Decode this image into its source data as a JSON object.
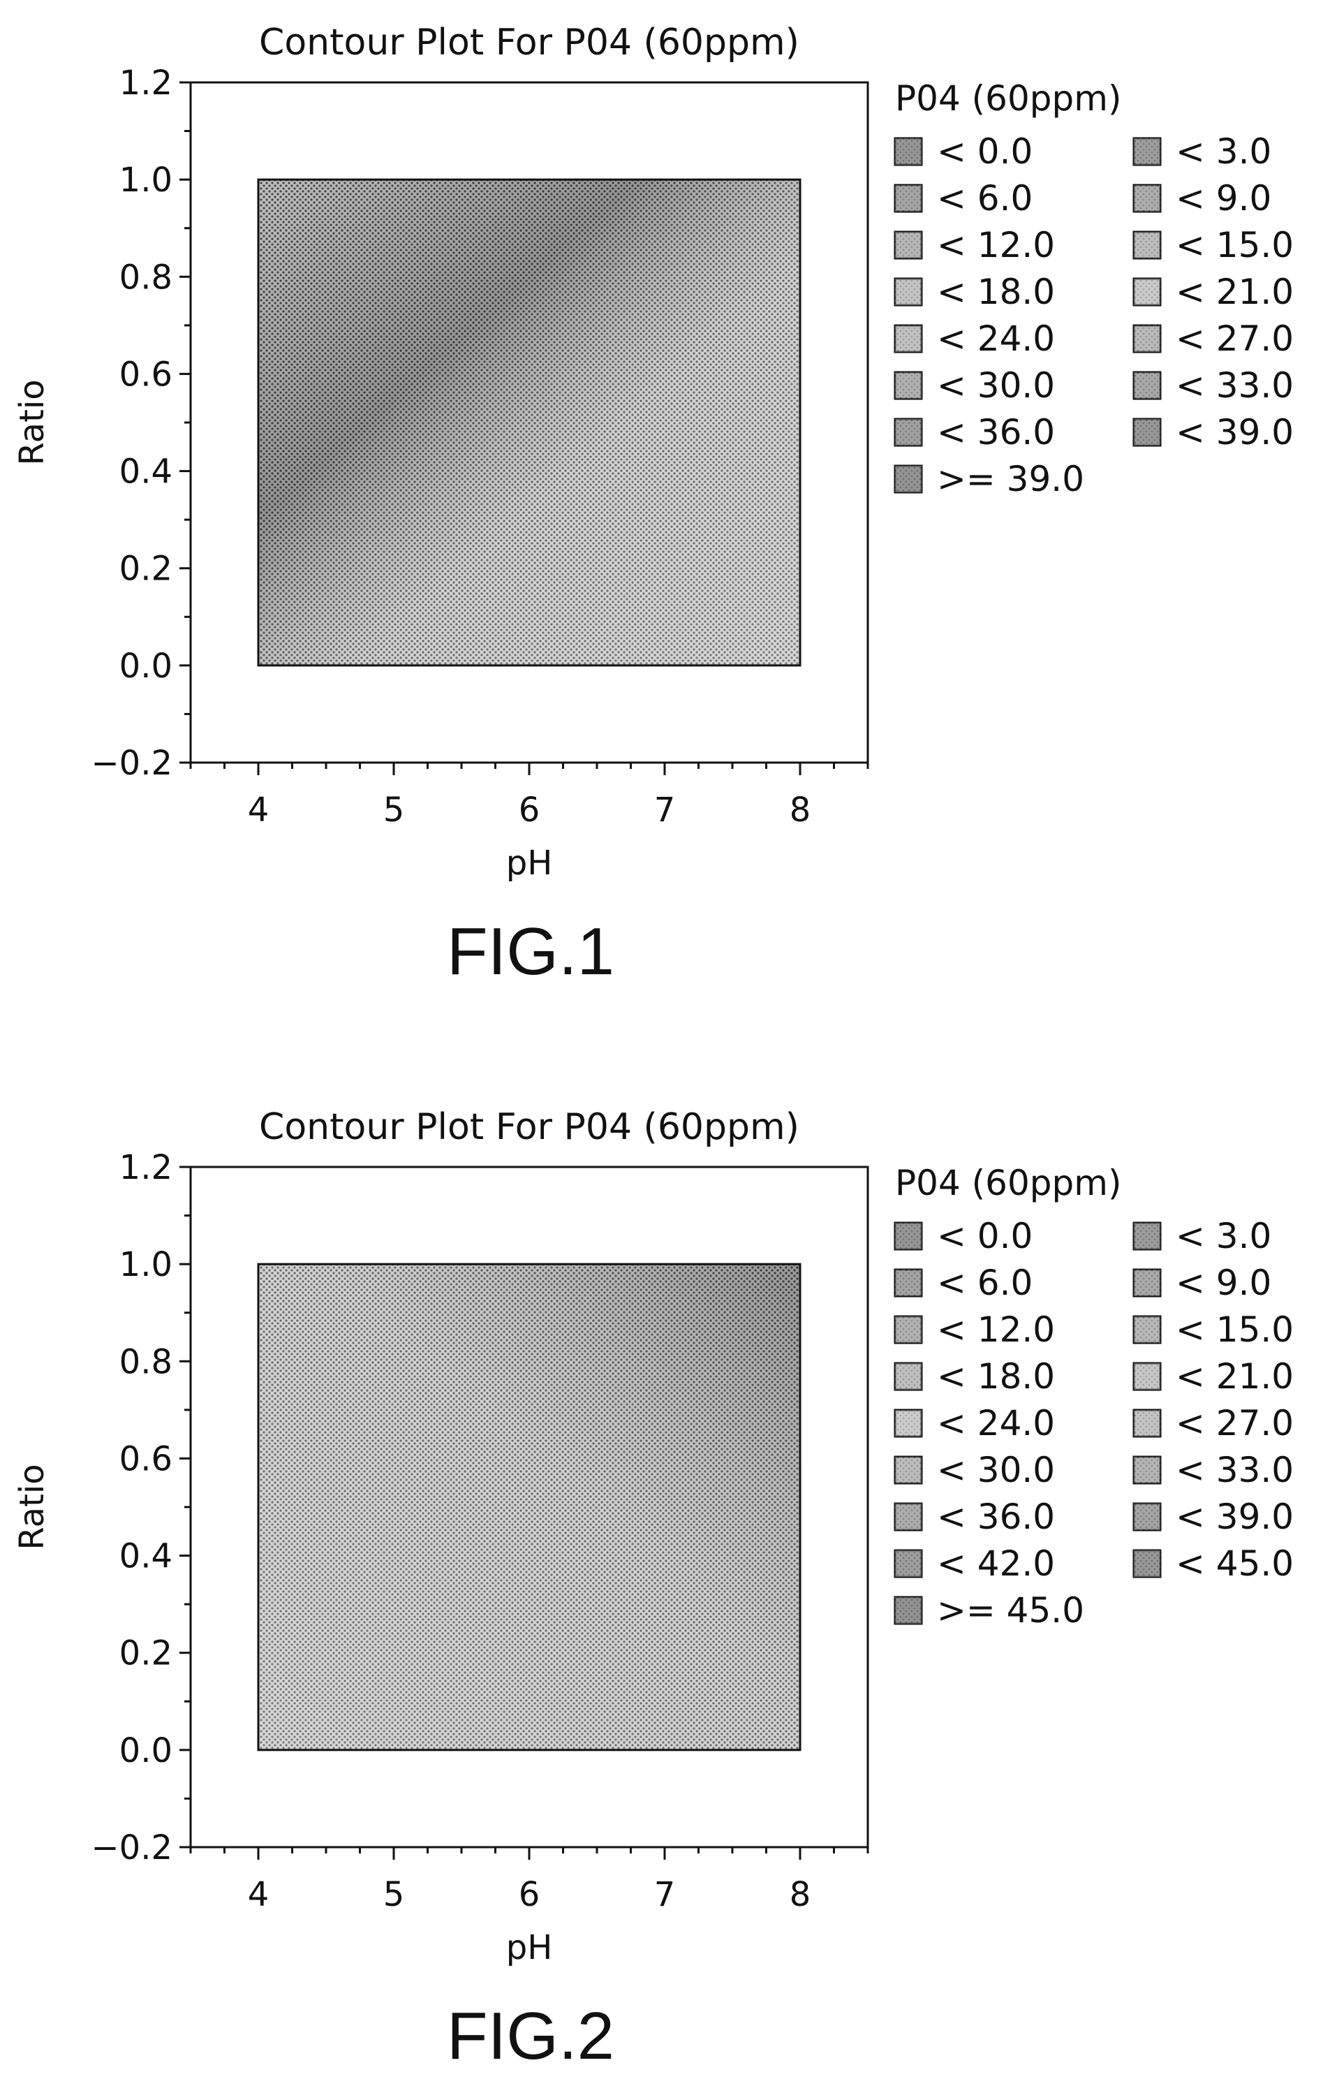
{
  "figures": [
    {
      "caption": "FIG.1",
      "chart_data": {
        "type": "heatmap",
        "title": "Contour Plot For P04 (60ppm)",
        "xlabel": "pH",
        "ylabel": "Ratio",
        "xlim": [
          3.5,
          8.5
        ],
        "ylim": [
          -0.2,
          1.2
        ],
        "x_ticks": [
          "4",
          "5",
          "6",
          "7",
          "8"
        ],
        "y_ticks": [
          "−0.2",
          "0.0",
          "0.2",
          "0.4",
          "0.6",
          "0.8",
          "1.0",
          "1.2"
        ],
        "region": {
          "x": [
            4,
            8
          ],
          "y": [
            0.0,
            1.0
          ]
        },
        "grid": false,
        "legend_position": "right",
        "legend_title": "P04 (60ppm)",
        "legend": [
          "<  0.0",
          "<  3.0",
          "<  6.0",
          "<  9.0",
          "<  12.0",
          "<  15.0",
          "<  18.0",
          "<  21.0",
          "<  24.0",
          "<  27.0",
          "<  30.0",
          "<  33.0",
          "<  36.0",
          "<  39.0",
          ">=  39.0"
        ],
        "legend_colors": [
          "#6e6e6e",
          "#7a7a7a",
          "#868686",
          "#929292",
          "#a0a0a0",
          "#aaaaaa",
          "#b4b4b4",
          "#bdbdbd",
          "#b0b0b0",
          "#a4a4a4",
          "#969696",
          "#8a8a8a",
          "#7e7e7e",
          "#727272",
          "#6a6a6a"
        ]
      }
    },
    {
      "caption": "FIG.2",
      "chart_data": {
        "type": "heatmap",
        "title": "Contour Plot For P04 (60ppm)",
        "xlabel": "pH",
        "ylabel": "Ratio",
        "xlim": [
          3.5,
          8.5
        ],
        "ylim": [
          -0.2,
          1.2
        ],
        "x_ticks": [
          "4",
          "5",
          "6",
          "7",
          "8"
        ],
        "y_ticks": [
          "−0.2",
          "0.0",
          "0.2",
          "0.4",
          "0.6",
          "0.8",
          "1.0",
          "1.2"
        ],
        "region": {
          "x": [
            4,
            8
          ],
          "y": [
            0.0,
            1.0
          ]
        },
        "grid": false,
        "legend_position": "right",
        "legend_title": "P04 (60ppm)",
        "legend": [
          "<  0.0",
          "<  3.0",
          "<  6.0",
          "<  9.0",
          "<  12.0",
          "<  15.0",
          "<  18.0",
          "<  21.0",
          "<  24.0",
          "<  27.0",
          "<  30.0",
          "<  33.0",
          "<  36.0",
          "<  39.0",
          "<  42.0",
          "<  45.0",
          ">=  45.0"
        ],
        "legend_colors": [
          "#6e6e6e",
          "#787878",
          "#828282",
          "#8c8c8c",
          "#989898",
          "#a2a2a2",
          "#aeaeae",
          "#b8b8b8",
          "#c0c0c0",
          "#b4b4b4",
          "#a8a8a8",
          "#9c9c9c",
          "#909090",
          "#848484",
          "#7a7a7a",
          "#707070",
          "#686868"
        ]
      }
    }
  ]
}
